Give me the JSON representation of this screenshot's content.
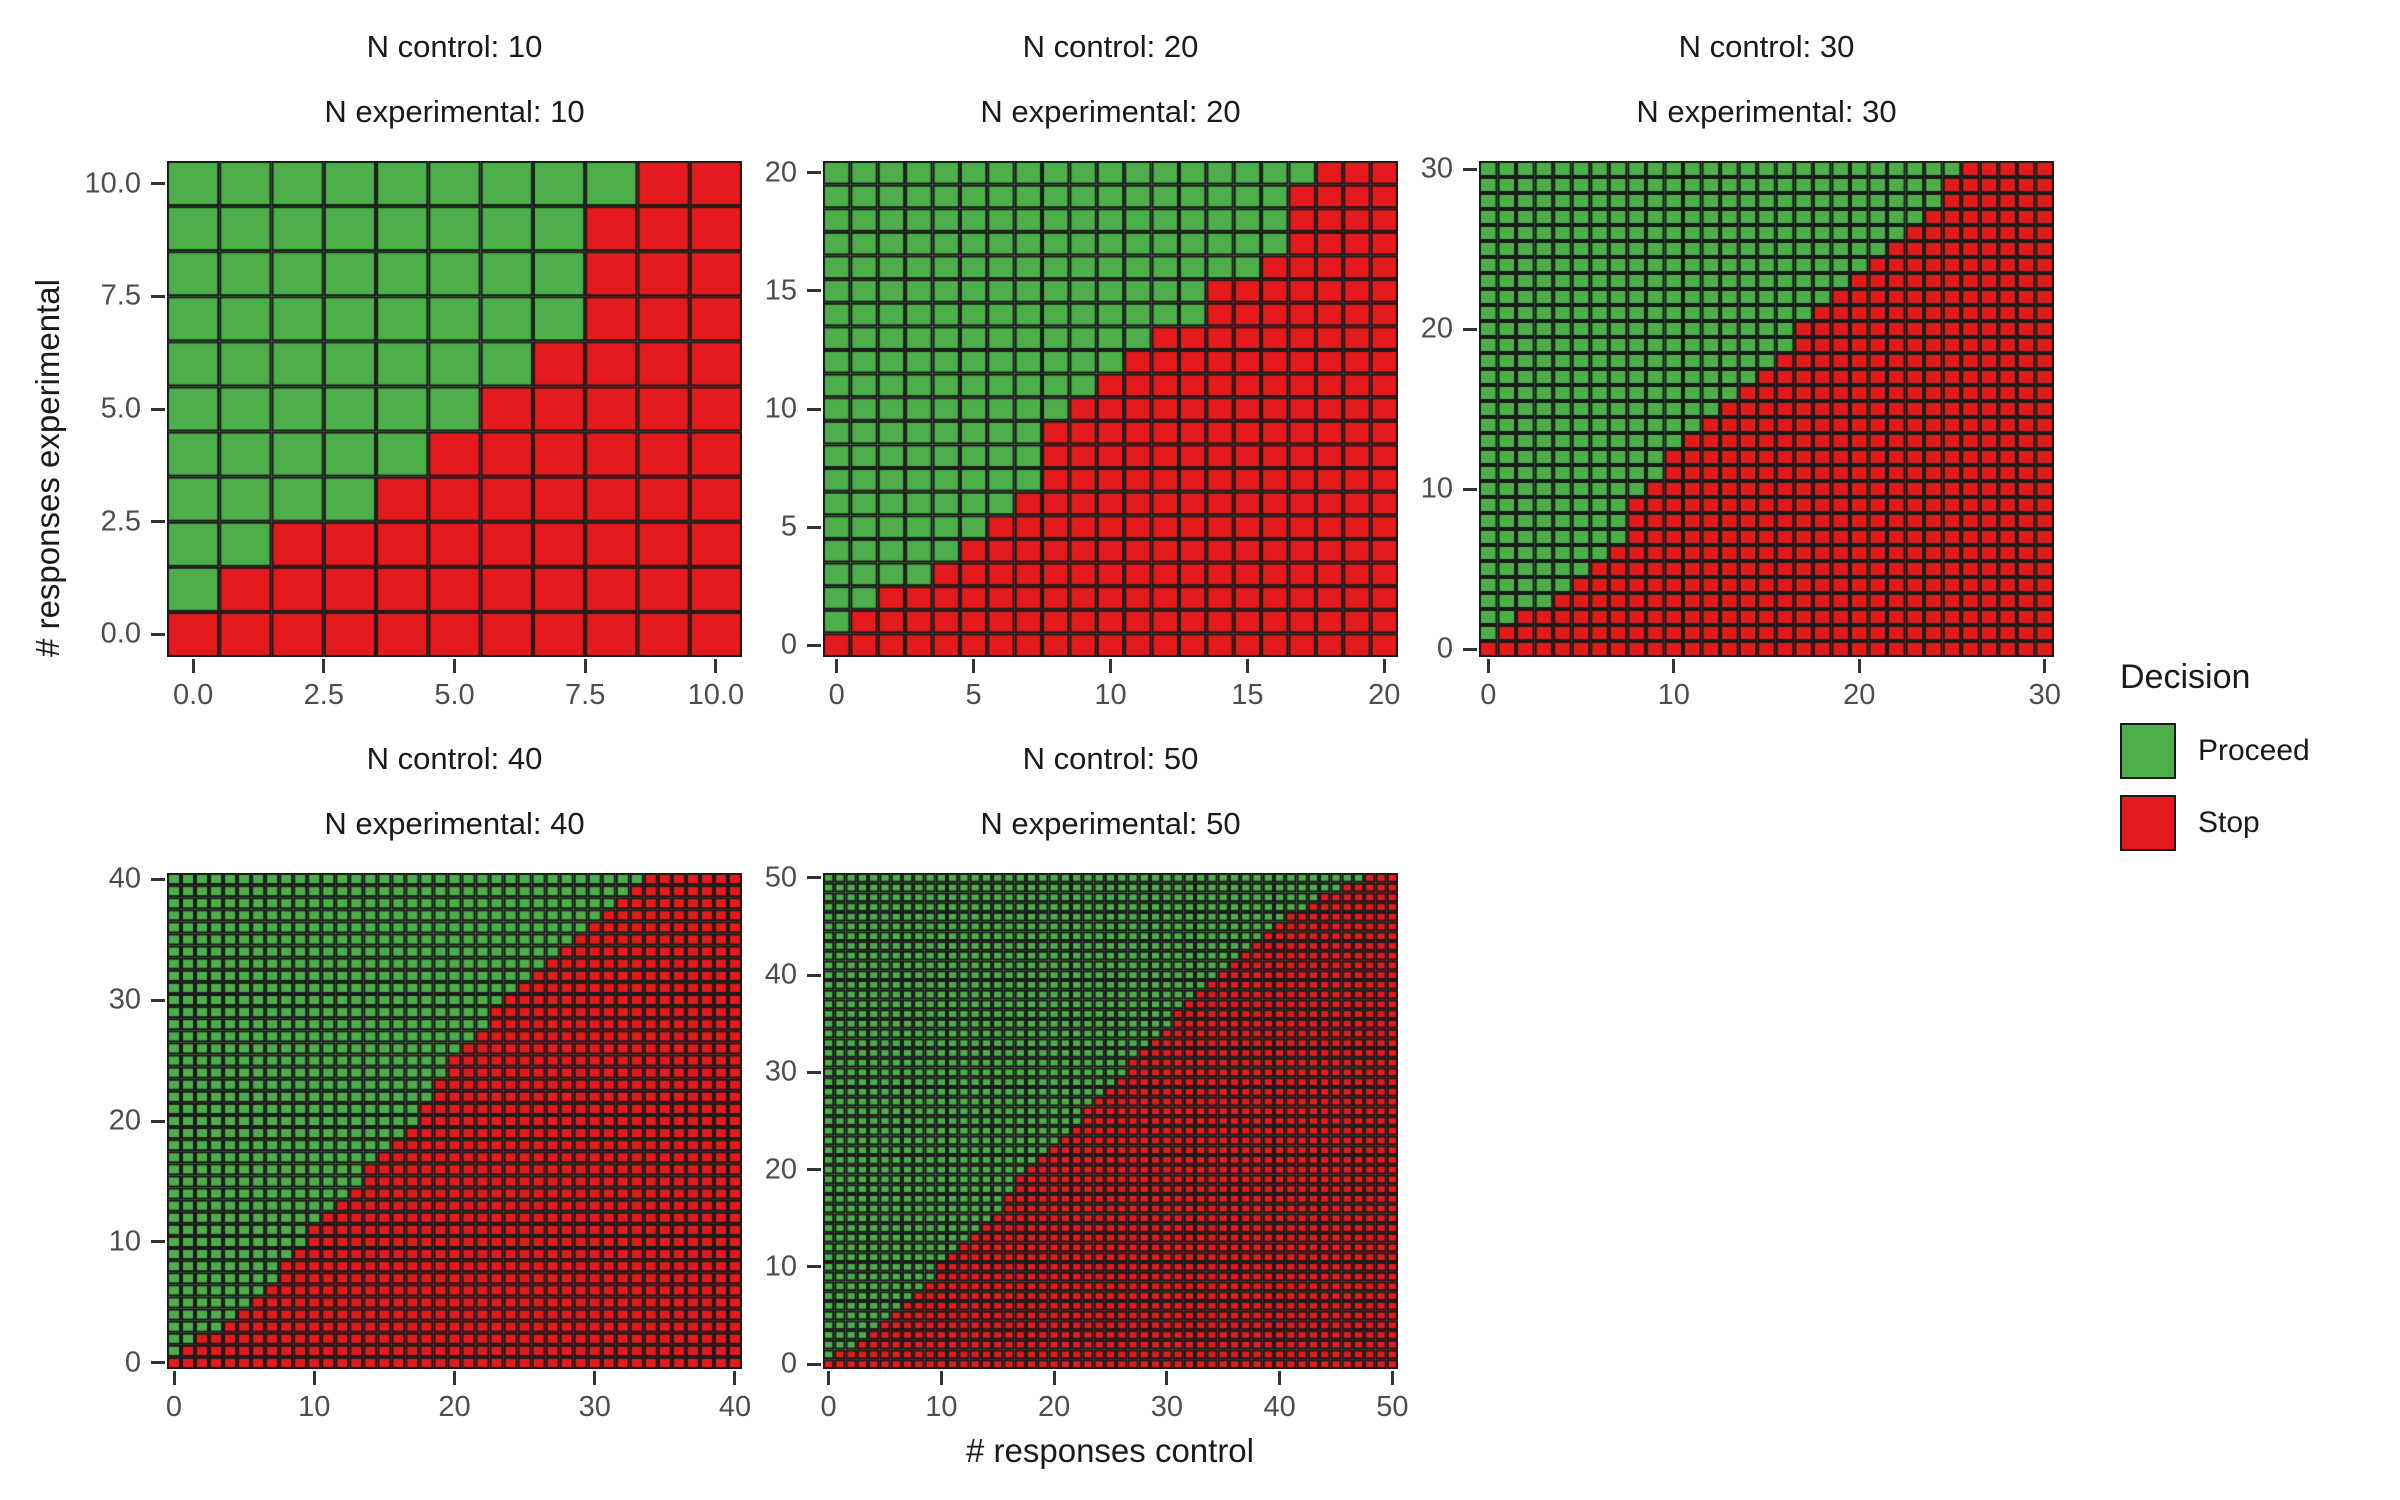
{
  "colors": {
    "proceed": "#4daf4a",
    "stop": "#e41a1c",
    "cell_border": "#1a1a1a",
    "tick_text": "#4d4d4d",
    "tick_mark": "#333333",
    "title_text": "#1a1a1a"
  },
  "axes": {
    "x_label": "# responses control",
    "y_label": "# responses experimental"
  },
  "legend": {
    "title": "Decision",
    "items": [
      {
        "label": "Proceed",
        "color_key": "proceed"
      },
      {
        "label": "Stop",
        "color_key": "stop"
      }
    ]
  },
  "chart_data": [
    {
      "type": "heatmap",
      "title_line1": "N control: 10",
      "title_line2": "N experimental: 10",
      "n_control": 10,
      "n_experimental": 10,
      "xlabel": "# responses control",
      "ylabel": "# responses experimental",
      "x_tick_labels": [
        "0.0",
        "2.5",
        "5.0",
        "7.5",
        "10.0"
      ],
      "x_tick_values": [
        0,
        2.5,
        5,
        7.5,
        10
      ],
      "y_tick_labels": [
        "0.0",
        "2.5",
        "5.0",
        "7.5",
        "10.0"
      ],
      "y_tick_values": [
        0,
        2.5,
        5,
        7.5,
        10
      ],
      "xlim": [
        -0.5,
        10.5
      ],
      "ylim": [
        -0.5,
        10.5
      ],
      "decision_rule": "cell (x,y) is Proceed(green) if x < first_stop_x_by_y[y], else Stop(red)",
      "first_stop_x_by_y": [
        0,
        1,
        2,
        4,
        5,
        6,
        7,
        8,
        8,
        8,
        9
      ]
    },
    {
      "type": "heatmap",
      "title_line1": "N control: 20",
      "title_line2": "N experimental: 20",
      "n_control": 20,
      "n_experimental": 20,
      "xlabel": "# responses control",
      "ylabel": "# responses experimental",
      "x_tick_labels": [
        "0",
        "5",
        "10",
        "15",
        "20"
      ],
      "x_tick_values": [
        0,
        5,
        10,
        15,
        20
      ],
      "y_tick_labels": [
        "0",
        "5",
        "10",
        "15",
        "20"
      ],
      "y_tick_values": [
        0,
        5,
        10,
        15,
        20
      ],
      "xlim": [
        -0.5,
        20.5
      ],
      "ylim": [
        -0.5,
        20.5
      ],
      "decision_rule": "cell (x,y) is Proceed(green) if x < first_stop_x_by_y[y], else Stop(red)",
      "first_stop_x_by_y": [
        0,
        1,
        2,
        4,
        5,
        6,
        7,
        8,
        8,
        8,
        9,
        10,
        11,
        12,
        14,
        14,
        16,
        17,
        17,
        17,
        18
      ]
    },
    {
      "type": "heatmap",
      "title_line1": "N control: 30",
      "title_line2": "N experimental: 30",
      "n_control": 30,
      "n_experimental": 30,
      "xlabel": "# responses control",
      "ylabel": "# responses experimental",
      "x_tick_labels": [
        "0",
        "10",
        "20",
        "30"
      ],
      "x_tick_values": [
        0,
        10,
        20,
        30
      ],
      "y_tick_labels": [
        "0",
        "10",
        "20",
        "30"
      ],
      "y_tick_values": [
        0,
        10,
        20,
        30
      ],
      "xlim": [
        -0.5,
        30.5
      ],
      "ylim": [
        -0.5,
        30.5
      ],
      "decision_rule": "cell (x,y) is Proceed(green) if x < first_stop_x_by_y[y], else Stop(red)",
      "first_stop_x_by_y": [
        0,
        1,
        2,
        4,
        5,
        6,
        7,
        8,
        8,
        8,
        9,
        10,
        10,
        11,
        12,
        13,
        14,
        15,
        16,
        17,
        17,
        18,
        19,
        20,
        21,
        22,
        23,
        24,
        25,
        25,
        26
      ]
    },
    {
      "type": "heatmap",
      "title_line1": "N control: 40",
      "title_line2": "N experimental: 40",
      "n_control": 40,
      "n_experimental": 40,
      "xlabel": "# responses control",
      "ylabel": "# responses experimental",
      "x_tick_labels": [
        "0",
        "10",
        "20",
        "30",
        "40"
      ],
      "x_tick_values": [
        0,
        10,
        20,
        30,
        40
      ],
      "y_tick_labels": [
        "0",
        "10",
        "20",
        "30",
        "40"
      ],
      "y_tick_values": [
        0,
        10,
        20,
        30,
        40
      ],
      "xlim": [
        -0.5,
        40.5
      ],
      "ylim": [
        -0.5,
        40.5
      ],
      "decision_rule": "cell (x,y) is Proceed(green) if x < first_stop_x_by_y[y], else Stop(red)",
      "first_stop_x_by_y": [
        0,
        1,
        2,
        4,
        5,
        6,
        7,
        8,
        8,
        9,
        10,
        10,
        11,
        12,
        13,
        14,
        14,
        15,
        16,
        17,
        18,
        18,
        19,
        19,
        20,
        20,
        21,
        22,
        23,
        23,
        24,
        25,
        26,
        27,
        28,
        29,
        30,
        31,
        32,
        33,
        34
      ]
    },
    {
      "type": "heatmap",
      "title_line1": "N control: 50",
      "title_line2": "N experimental: 50",
      "n_control": 50,
      "n_experimental": 50,
      "xlabel": "# responses control",
      "ylabel": "# responses experimental",
      "x_tick_labels": [
        "0",
        "10",
        "20",
        "30",
        "40",
        "50"
      ],
      "x_tick_values": [
        0,
        10,
        20,
        30,
        40,
        50
      ],
      "y_tick_labels": [
        "0",
        "10",
        "20",
        "30",
        "40",
        "50"
      ],
      "y_tick_values": [
        0,
        10,
        20,
        30,
        40,
        50
      ],
      "xlim": [
        -0.5,
        50.5
      ],
      "ylim": [
        -0.5,
        50.5
      ],
      "decision_rule": "cell (x,y) is Proceed(green) if x < first_stop_x_by_y[y], else Stop(red)",
      "first_stop_x_by_y": [
        0,
        1,
        3,
        4,
        5,
        6,
        7,
        8,
        9,
        10,
        10,
        11,
        12,
        13,
        14,
        15,
        16,
        16,
        17,
        17,
        18,
        19,
        20,
        21,
        22,
        23,
        23,
        24,
        25,
        26,
        27,
        27,
        28,
        29,
        30,
        31,
        31,
        32,
        33,
        34,
        35,
        36,
        37,
        38,
        39,
        40,
        41,
        43,
        44,
        46,
        48
      ]
    }
  ]
}
